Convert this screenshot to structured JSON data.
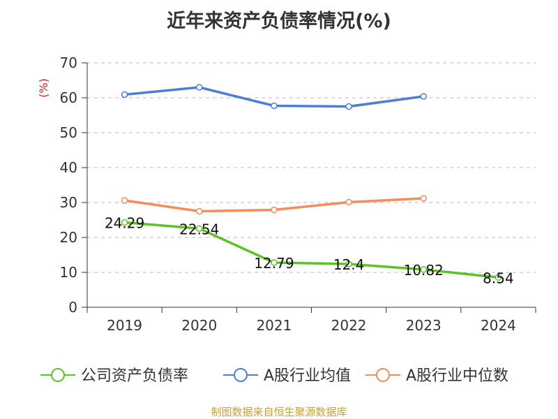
{
  "chart_data": {
    "type": "line",
    "title": "近年来资产负债率情况(%)",
    "ylabel": "(%)",
    "xlabel": "",
    "categories": [
      "2019",
      "2020",
      "2021",
      "2022",
      "2023",
      "2024"
    ],
    "ylim": [
      0,
      70
    ],
    "yticks": [
      0,
      10,
      20,
      30,
      40,
      50,
      60,
      70
    ],
    "grid": true,
    "legend_position": "bottom",
    "series": [
      {
        "name": "公司资产负债率",
        "color": "#5bc424",
        "values": [
          24.29,
          22.54,
          12.79,
          12.4,
          10.82,
          8.54
        ],
        "data_labels": [
          "24.29",
          "22.54",
          "12.79",
          "12.4",
          "10.82",
          "8.54"
        ]
      },
      {
        "name": "A股行业均值",
        "color": "#4a7fd9",
        "values": [
          60.9,
          63.0,
          57.7,
          57.5,
          60.4,
          null
        ]
      },
      {
        "name": "A股行业中位数",
        "color": "#f68c5a",
        "values": [
          30.6,
          27.5,
          27.9,
          30.1,
          31.2,
          null
        ]
      }
    ]
  },
  "source": "制图数据来自恒生聚源数据库"
}
